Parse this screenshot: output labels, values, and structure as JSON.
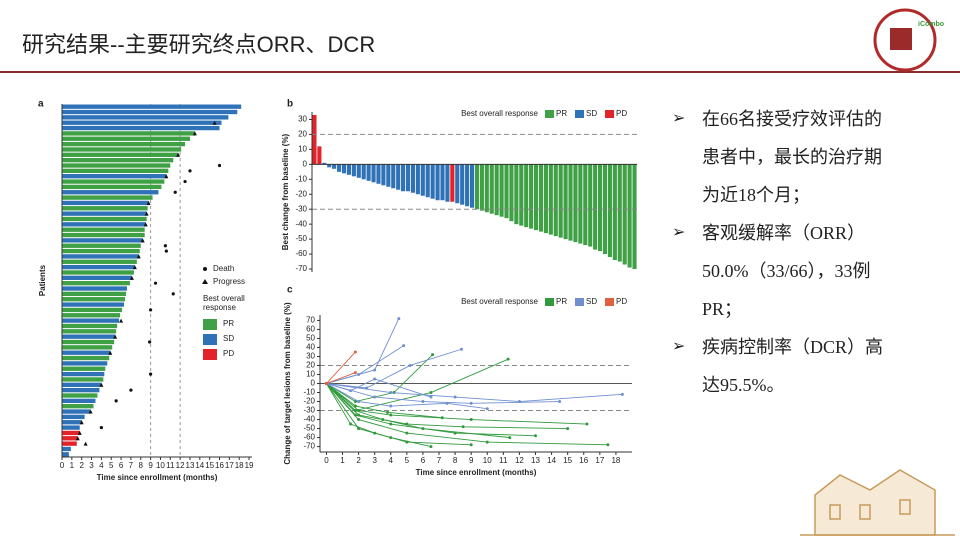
{
  "title": "研究结果--主要研究终点ORR、DCR",
  "logo_text": "iCombo",
  "bullets": [
    "在66名接受疗效评估的患者中，最长的治疗期为近18个月；",
    "客观缓解率（ORR）50.0%（33/66），33例PR；",
    "疾病控制率（DCR）高达95.5%。"
  ],
  "chart_data": [
    {
      "type": "swimmer",
      "panel_label": "a",
      "x_label": "Time since enrollment (months)",
      "y_label": "Patients",
      "xlim": [
        0,
        19.3
      ],
      "xticks": [
        0,
        1,
        2,
        3,
        4,
        5,
        6,
        7,
        8,
        9,
        10,
        11,
        12,
        13,
        14,
        15,
        16,
        17,
        18,
        19
      ],
      "reference_lines": [
        9,
        12
      ],
      "legend": "right",
      "legend_title": "Best overall response",
      "series": [
        {
          "name": "PR",
          "color": "#3fa046",
          "values": [
            null,
            null,
            null,
            null,
            null,
            13.5,
            13.0,
            12.5,
            12.1,
            11.8,
            11.3,
            11.0,
            10.8,
            null,
            10.4,
            10.1,
            null,
            9.2,
            null,
            8.7,
            null,
            8.6,
            null,
            8.4,
            8.4,
            null,
            8.0,
            7.9,
            null,
            7.6,
            null,
            7.3,
            null,
            6.9,
            null,
            6.5,
            6.4,
            null,
            6.1,
            5.9,
            null,
            5.6,
            5.5,
            null,
            5.3,
            5.1,
            null,
            4.8,
            null,
            4.4,
            null,
            4.2,
            null,
            null,
            3.6,
            null,
            3.2,
            null,
            null,
            null,
            null,
            null,
            null,
            null,
            null,
            null
          ]
        },
        {
          "name": "SD",
          "color": "#2f72b8",
          "values": [
            18.2,
            17.8,
            16.9,
            16.2,
            16.0,
            null,
            null,
            null,
            null,
            null,
            null,
            null,
            null,
            10.6,
            null,
            null,
            9.8,
            null,
            8.8,
            null,
            8.6,
            null,
            8.5,
            null,
            null,
            8.2,
            null,
            null,
            7.8,
            null,
            7.4,
            null,
            7.1,
            null,
            6.6,
            null,
            null,
            6.3,
            null,
            null,
            5.8,
            null,
            null,
            5.4,
            null,
            null,
            4.9,
            null,
            4.6,
            null,
            4.3,
            null,
            4.0,
            3.8,
            null,
            3.4,
            null,
            2.9,
            2.3,
            2.0,
            1.8,
            null,
            null,
            null,
            0.9,
            0.7
          ]
        },
        {
          "name": "PD",
          "color": "#e2232a",
          "values": [
            null,
            null,
            null,
            null,
            null,
            null,
            null,
            null,
            null,
            null,
            null,
            null,
            null,
            null,
            null,
            null,
            null,
            null,
            null,
            null,
            null,
            null,
            null,
            null,
            null,
            null,
            null,
            null,
            null,
            null,
            null,
            null,
            null,
            null,
            null,
            null,
            null,
            null,
            null,
            null,
            null,
            null,
            null,
            null,
            null,
            null,
            null,
            null,
            null,
            null,
            null,
            null,
            null,
            null,
            null,
            null,
            null,
            null,
            null,
            null,
            null,
            1.8,
            1.6,
            1.5,
            null,
            null
          ]
        }
      ],
      "markers": [
        {
          "name": "Death",
          "shape": "circle",
          "patients": [
            11,
            12,
            14,
            16,
            26,
            27,
            33,
            35,
            38,
            44,
            50,
            53,
            55,
            60
          ],
          "x": [
            16.0,
            13.0,
            12.5,
            11.5,
            10.5,
            10.6,
            9.5,
            11.3,
            9.0,
            8.9,
            9.0,
            7.0,
            5.5,
            4.0
          ]
        },
        {
          "name": "Progress",
          "shape": "triangle",
          "patients": [
            3,
            5,
            9,
            13,
            18,
            20,
            22,
            25,
            28,
            30,
            32,
            40,
            43,
            46,
            52,
            57,
            59,
            61,
            62,
            63
          ],
          "x": [
            15.5,
            13.5,
            11.8,
            10.6,
            8.8,
            8.6,
            8.5,
            8.2,
            7.8,
            7.4,
            7.1,
            6.0,
            5.4,
            4.9,
            4.0,
            2.9,
            2.0,
            1.8,
            1.6,
            2.4
          ]
        }
      ]
    },
    {
      "type": "waterfall",
      "panel_label": "b",
      "y_label": "Best change from baseline (%)",
      "ylim": [
        -72,
        35
      ],
      "yticks": [
        -70,
        -60,
        -50,
        -40,
        -30,
        -20,
        -10,
        0,
        10,
        20,
        30
      ],
      "reference_lines": [
        20,
        -30
      ],
      "legend": "top",
      "legend_title": "Best overall response",
      "series": [
        {
          "name": "PR",
          "color": "#3fa046",
          "values": [
            null,
            null,
            null,
            null,
            null,
            null,
            null,
            null,
            null,
            null,
            null,
            null,
            null,
            null,
            null,
            null,
            null,
            null,
            null,
            null,
            null,
            null,
            null,
            null,
            null,
            null,
            null,
            null,
            null,
            null,
            null,
            null,
            null,
            -30,
            -31,
            -32,
            -33,
            -34,
            -35,
            -36,
            -38,
            -40,
            -41,
            -42,
            -43,
            -44,
            -45,
            -46,
            -47,
            -48,
            -49,
            -50,
            -51,
            -52,
            -53,
            -54,
            -55,
            -57,
            -58,
            -60,
            -62,
            -64,
            -65,
            -67,
            -69,
            -70
          ]
        },
        {
          "name": "SD",
          "color": "#2f72b8",
          "values": [
            null,
            null,
            1,
            -2,
            -3,
            -5,
            -6,
            -7,
            -8,
            -9,
            -10,
            -11,
            -12,
            -13,
            -14,
            -15,
            -16,
            -17,
            -18,
            -18,
            -19,
            -20,
            -21,
            -22,
            -23,
            -24,
            -24,
            -25,
            null,
            -26,
            -27,
            -28,
            -29,
            null,
            null,
            null,
            null,
            null,
            null,
            null,
            null,
            null,
            null,
            null,
            null,
            null,
            null,
            null,
            null,
            null,
            null,
            null,
            null,
            null,
            null,
            null,
            null,
            null,
            null,
            null,
            null,
            null,
            null,
            null,
            null,
            null
          ]
        },
        {
          "name": "PD",
          "color": "#e2232a",
          "values": [
            33,
            12,
            null,
            null,
            null,
            null,
            null,
            null,
            null,
            null,
            null,
            null,
            null,
            null,
            null,
            null,
            null,
            null,
            null,
            null,
            null,
            null,
            null,
            null,
            null,
            null,
            null,
            null,
            -25,
            null,
            null,
            null,
            null,
            null,
            null,
            null,
            null,
            null,
            null,
            null,
            null,
            null,
            null,
            null,
            null,
            null,
            null,
            null,
            null,
            null,
            null,
            null,
            null,
            null,
            null,
            null,
            null,
            null,
            null,
            null,
            null,
            null,
            null,
            null,
            null,
            null
          ]
        }
      ]
    },
    {
      "type": "spider",
      "panel_label": "c",
      "x_label": "Time since enrollment (months)",
      "y_label": "Change of target lesions from baseline (%)",
      "xlim": [
        -0.4,
        19
      ],
      "xticks": [
        0,
        1,
        2,
        3,
        4,
        5,
        6,
        7,
        8,
        9,
        10,
        11,
        12,
        13,
        14,
        15,
        16,
        17,
        18
      ],
      "ylim": [
        -76,
        76
      ],
      "yticks": [
        -70,
        -60,
        -50,
        -40,
        -30,
        -20,
        -10,
        0,
        10,
        20,
        30,
        40,
        50,
        60,
        70
      ],
      "reference_lines": [
        20,
        -30
      ],
      "legend": "top",
      "legend_title": "Best overall response",
      "series": [
        {
          "name": "PR",
          "color": "#2f9a3c",
          "lines": [
            {
              "x": [
                0,
                1.8,
                4,
                8,
                13
              ],
              "y": [
                0,
                -35,
                -45,
                -55,
                -58
              ]
            },
            {
              "x": [
                0,
                2,
                5,
                10,
                17.5
              ],
              "y": [
                0,
                -40,
                -55,
                -65,
                -68
              ]
            },
            {
              "x": [
                0,
                1.8,
                3.5,
                6,
                11.4
              ],
              "y": [
                0,
                -30,
                -40,
                -50,
                -60
              ]
            },
            {
              "x": [
                0,
                2,
                4,
                6.5
              ],
              "y": [
                0,
                -50,
                -60,
                -70
              ]
            },
            {
              "x": [
                0,
                1.8,
                6.5,
                11.3
              ],
              "y": [
                0,
                -30,
                -10,
                27
              ]
            },
            {
              "x": [
                0,
                1.8,
                4.2,
                6.6
              ],
              "y": [
                0,
                -20,
                -10,
                32
              ]
            },
            {
              "x": [
                0,
                2,
                5,
                8.5,
                15
              ],
              "y": [
                0,
                -35,
                -45,
                -48,
                -50
              ]
            },
            {
              "x": [
                0,
                1.5,
                3,
                5,
                9
              ],
              "y": [
                0,
                -45,
                -55,
                -65,
                -68
              ]
            },
            {
              "x": [
                0,
                2,
                4,
                9,
                16.2
              ],
              "y": [
                0,
                -30,
                -35,
                -40,
                -45
              ]
            },
            {
              "x": [
                0,
                1.8,
                3.8,
                7.2
              ],
              "y": [
                0,
                -25,
                -32,
                -38
              ]
            }
          ]
        },
        {
          "name": "SD",
          "color": "#6f8fd0",
          "lines": [
            {
              "x": [
                0,
                2,
                4.8
              ],
              "y": [
                0,
                10,
                42
              ]
            },
            {
              "x": [
                0,
                3,
                4.5
              ],
              "y": [
                0,
                15,
                72
              ]
            },
            {
              "x": [
                0,
                2.5,
                5.2,
                8.4
              ],
              "y": [
                0,
                -5,
                20,
                38
              ]
            },
            {
              "x": [
                0,
                4,
                8,
                12,
                18.4
              ],
              "y": [
                0,
                -10,
                -15,
                -20,
                -12
              ]
            },
            {
              "x": [
                0,
                3,
                6,
                9,
                14.5
              ],
              "y": [
                0,
                -15,
                -20,
                -22,
                -20
              ]
            },
            {
              "x": [
                0,
                1.5,
                3,
                6.5
              ],
              "y": [
                0,
                -8,
                5,
                -15
              ]
            },
            {
              "x": [
                0,
                2,
                4,
                7.5,
                10
              ],
              "y": [
                0,
                -20,
                -25,
                -22,
                -28
              ]
            }
          ]
        },
        {
          "name": "PD",
          "color": "#e0603f",
          "lines": [
            {
              "x": [
                0,
                1.8
              ],
              "y": [
                0,
                35
              ]
            },
            {
              "x": [
                0,
                1.8
              ],
              "y": [
                0,
                12
              ]
            }
          ]
        }
      ]
    }
  ]
}
